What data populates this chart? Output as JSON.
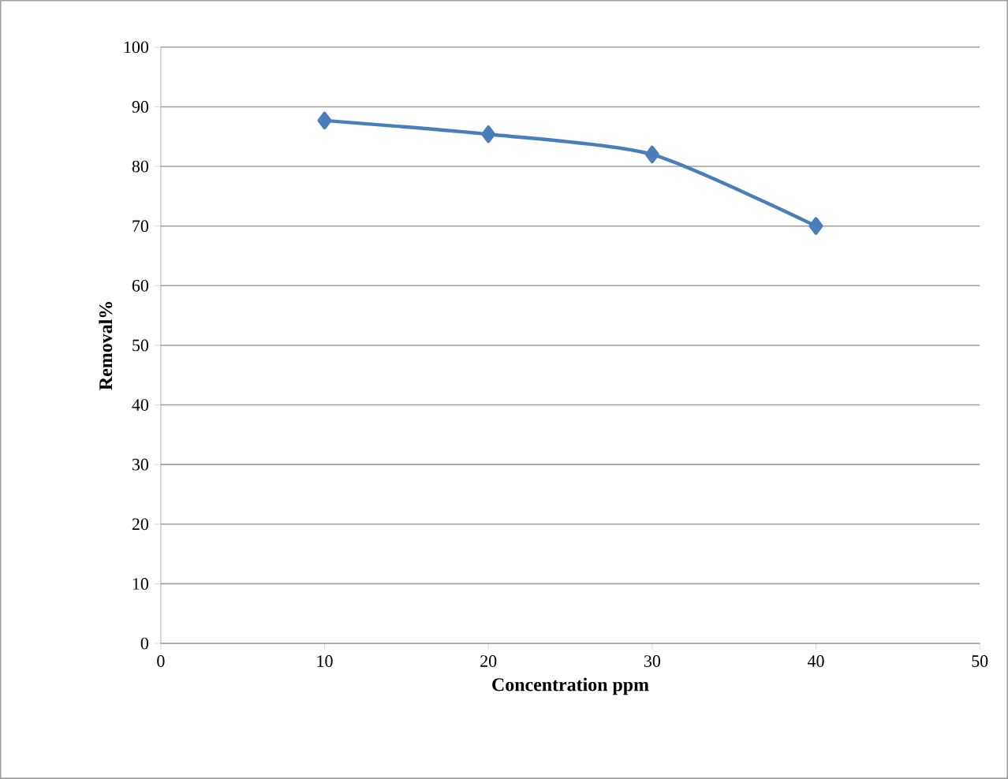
{
  "chart_data": {
    "type": "line",
    "xlabel": "Concentration ppm",
    "ylabel": "Removal%",
    "x": [
      10,
      20,
      30,
      40
    ],
    "series": [
      {
        "color": "#4a7ebb",
        "values": [
          87.7,
          85.4,
          82,
          70
        ]
      }
    ],
    "xlim": [
      0,
      50
    ],
    "xticks": [
      0,
      10,
      20,
      30,
      40,
      50
    ],
    "ylim": [
      0,
      100
    ],
    "yticks": [
      0,
      10,
      20,
      30,
      40,
      50,
      60,
      70,
      80,
      90,
      100
    ],
    "grid": "y",
    "marker": "diamond",
    "line_style": "solid"
  }
}
